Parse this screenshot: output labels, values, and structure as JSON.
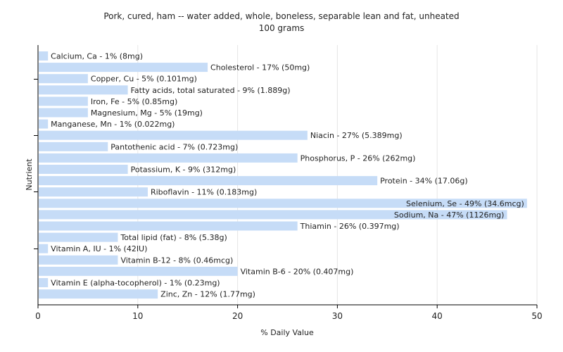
{
  "chart_data": {
    "type": "bar",
    "orientation": "horizontal",
    "title": "Pork, cured, ham -- water added, whole, boneless, separable lean and fat, unheated",
    "subtitle": "100 grams",
    "xlabel": "% Daily Value",
    "ylabel": "Nutrient",
    "xlim": [
      0,
      50
    ],
    "xticks": [
      0,
      10,
      20,
      30,
      40,
      50
    ],
    "grid": true,
    "bar_color": "#c6dcf7",
    "categories": [
      "Calcium, Ca",
      "Cholesterol",
      "Copper, Cu",
      "Fatty acids, total saturated",
      "Iron, Fe",
      "Magnesium, Mg",
      "Manganese, Mn",
      "Niacin",
      "Pantothenic acid",
      "Phosphorus, P",
      "Potassium, K",
      "Protein",
      "Riboflavin",
      "Selenium, Se",
      "Sodium, Na",
      "Thiamin",
      "Total lipid (fat)",
      "Vitamin A, IU",
      "Vitamin B-12",
      "Vitamin B-6",
      "Vitamin E (alpha-tocopherol)",
      "Zinc, Zn"
    ],
    "values": [
      1,
      17,
      5,
      9,
      5,
      5,
      1,
      27,
      7,
      26,
      9,
      34,
      11,
      49,
      47,
      26,
      8,
      1,
      8,
      20,
      1,
      12
    ],
    "labels": [
      "Calcium, Ca - 1% (8mg)",
      "Cholesterol - 17% (50mg)",
      "Copper, Cu - 5% (0.101mg)",
      "Fatty acids, total saturated - 9% (1.889g)",
      "Iron, Fe - 5% (0.85mg)",
      "Magnesium, Mg - 5% (19mg)",
      "Manganese, Mn - 1% (0.022mg)",
      "Niacin - 27% (5.389mg)",
      "Pantothenic acid - 7% (0.723mg)",
      "Phosphorus, P - 26% (262mg)",
      "Potassium, K - 9% (312mg)",
      "Protein - 34% (17.06g)",
      "Riboflavin - 11% (0.183mg)",
      "Selenium, Se - 49% (34.6mcg)",
      "Sodium, Na - 47% (1126mg)",
      "Thiamin - 26% (0.397mg)",
      "Total lipid (fat) - 8% (5.38g)",
      "Vitamin A, IU - 1% (42IU)",
      "Vitamin B-12 - 8% (0.46mcg)",
      "Vitamin B-6 - 20% (0.407mg)",
      "Vitamin E (alpha-tocopherol) - 1% (0.23mg)",
      "Zinc, Zn - 12% (1.77mg)"
    ]
  }
}
